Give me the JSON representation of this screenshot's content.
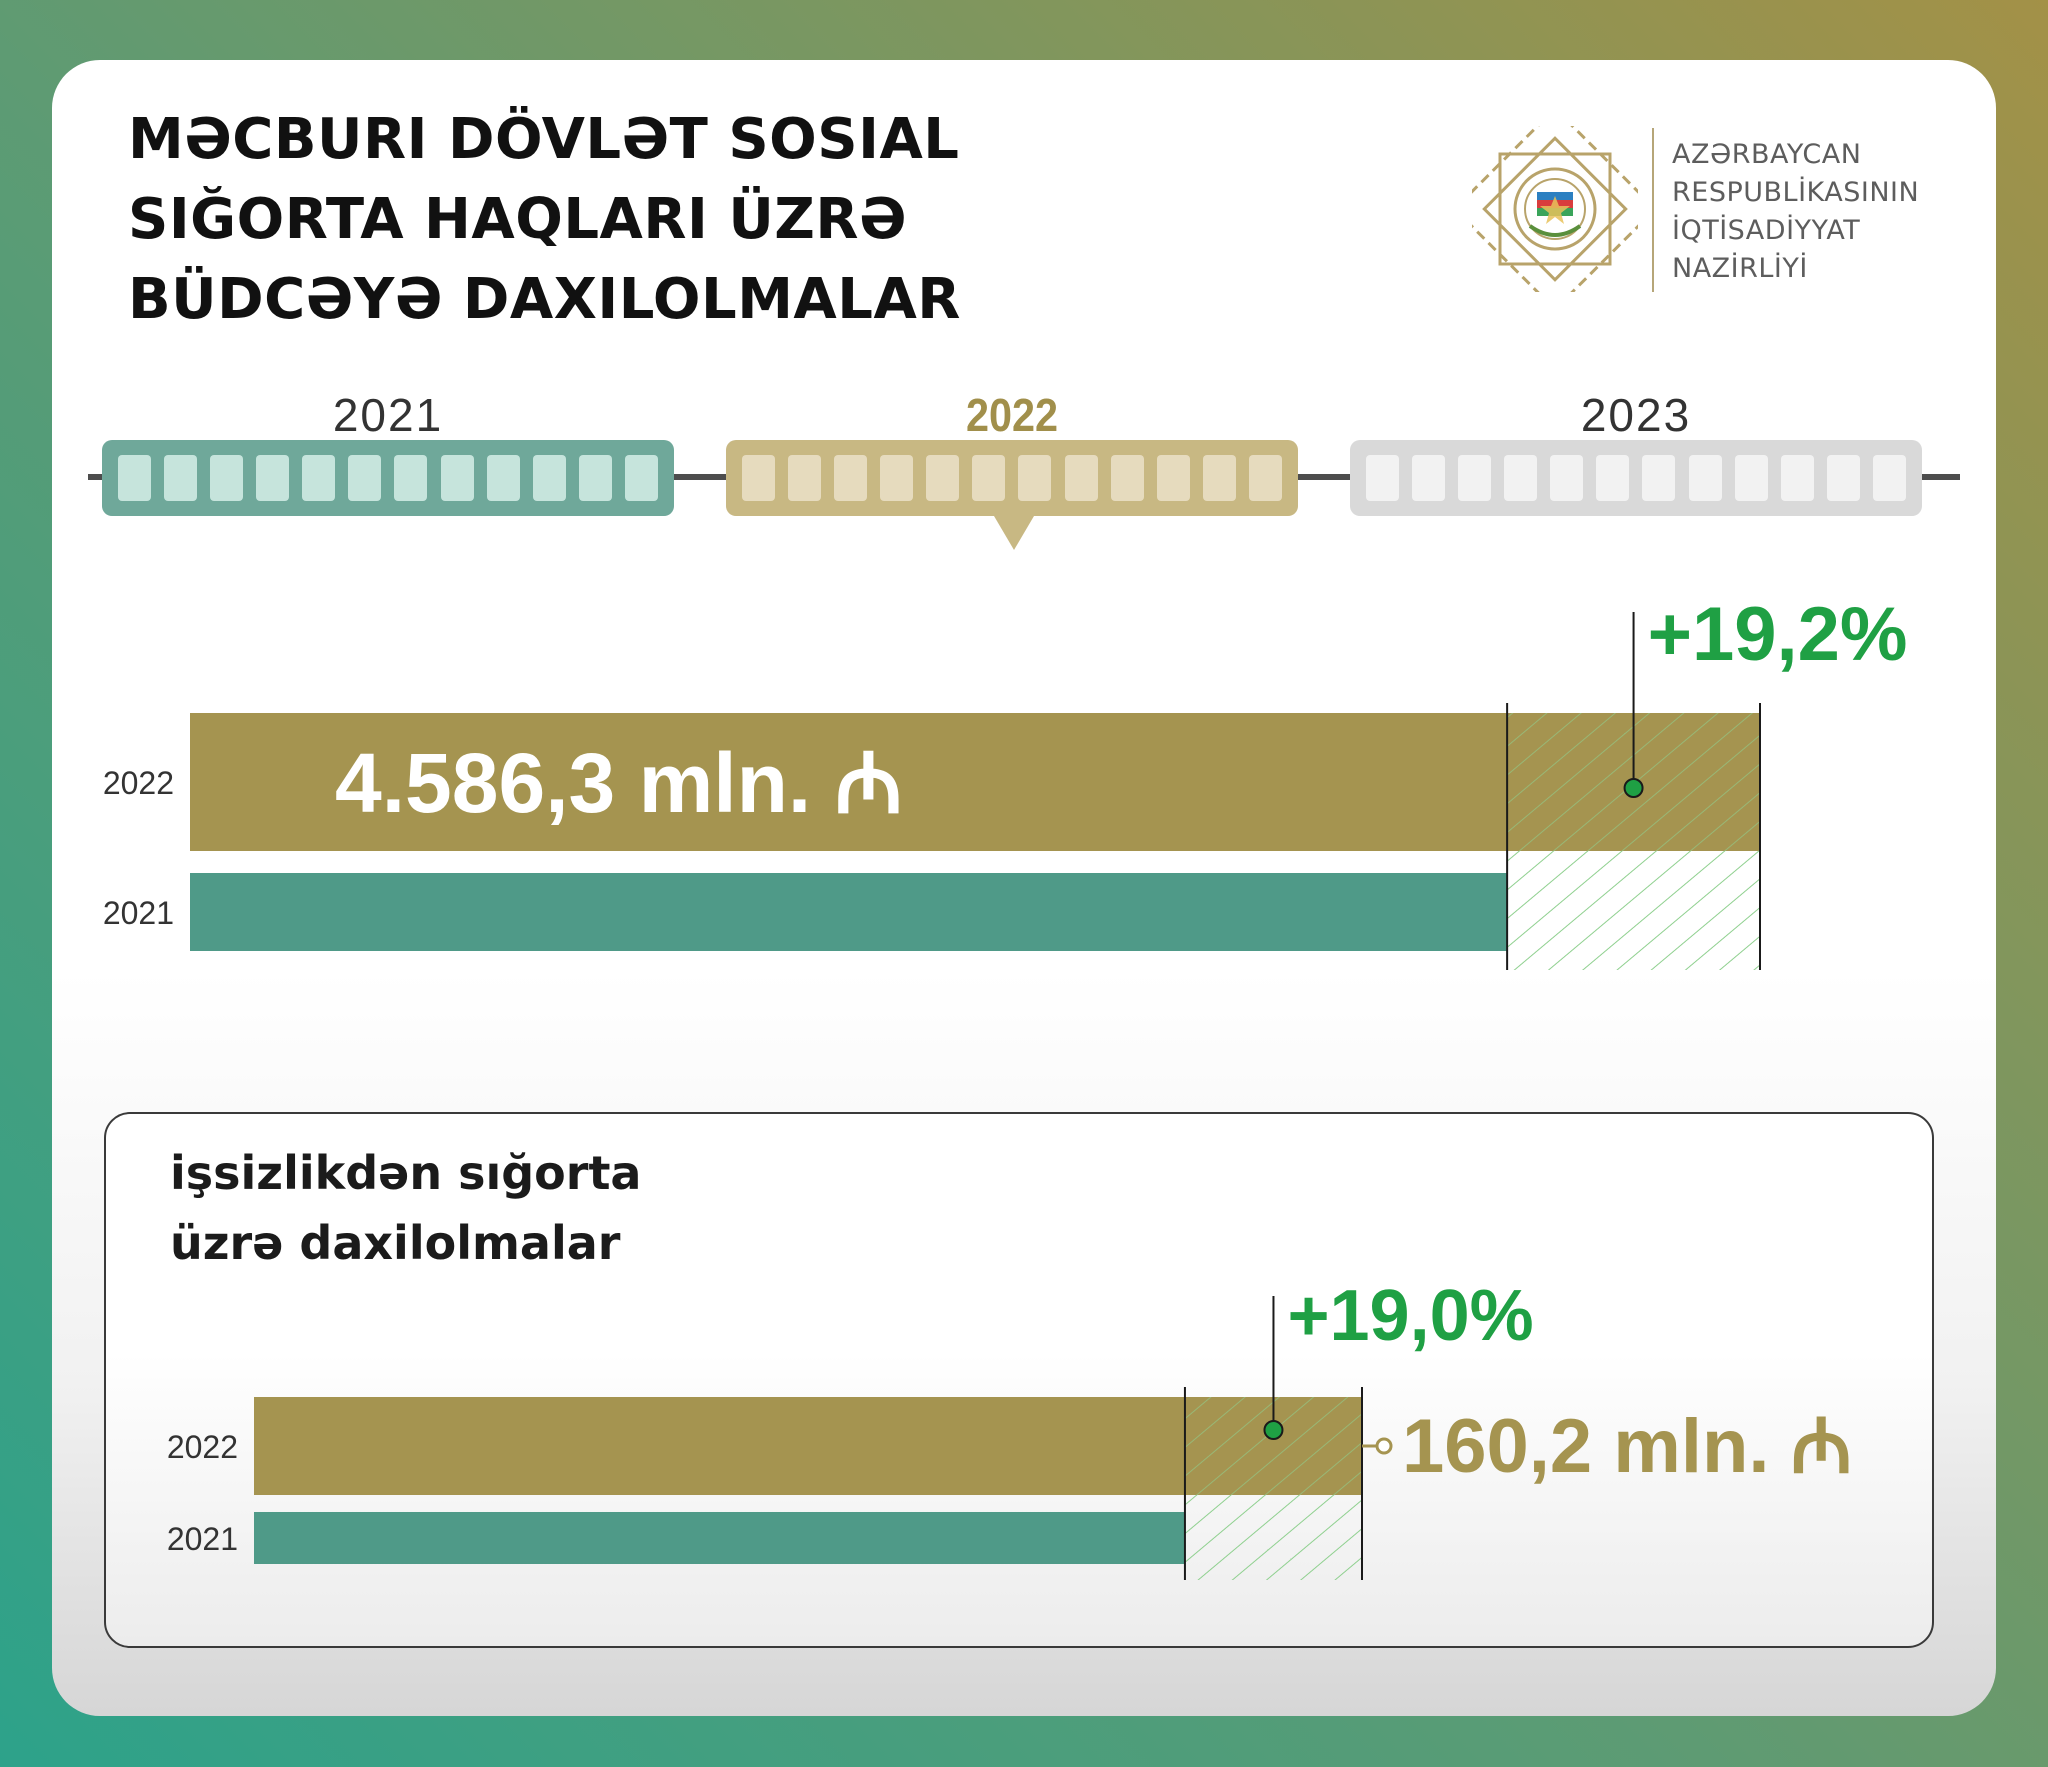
{
  "header": {
    "title_lines": [
      "Məcburi dövlət sosial",
      "sığorta haqları üzrə",
      "büdcəyə daxilolmalar"
    ]
  },
  "logo": {
    "icon": "emblem-icon",
    "text_lines": [
      "AZƏRBAYCAN",
      "RESPUBLİKASININ",
      "İQTİSADİYYAT",
      "NAZİRLİYİ"
    ]
  },
  "timeline": {
    "years": [
      "2021",
      "2022",
      "2023"
    ],
    "active_year": "2022"
  },
  "colors": {
    "bar_2022": "#a59450",
    "bar_2021": "#4f9a88",
    "growth": "#1fa044",
    "hatch": "#8fd08f"
  },
  "chart_data": [
    {
      "type": "bar",
      "orientation": "horizontal",
      "categories": [
        "2022",
        "2021"
      ],
      "values": [
        4586.3,
        3847.6
      ],
      "value_label": "4.586,3 mln. ₼",
      "growth_label": "+19,2%"
    },
    {
      "type": "bar",
      "orientation": "horizontal",
      "title": "işsizlikdən sığorta üzrə daxilolmalar",
      "title_lines": [
        "işsizlikdən sığorta",
        "üzrə daxilolmalar"
      ],
      "categories": [
        "2022",
        "2021"
      ],
      "values": [
        160.2,
        134.6
      ],
      "value_label": "160,2 mln. ₼",
      "growth_label": "+19,0%"
    }
  ]
}
